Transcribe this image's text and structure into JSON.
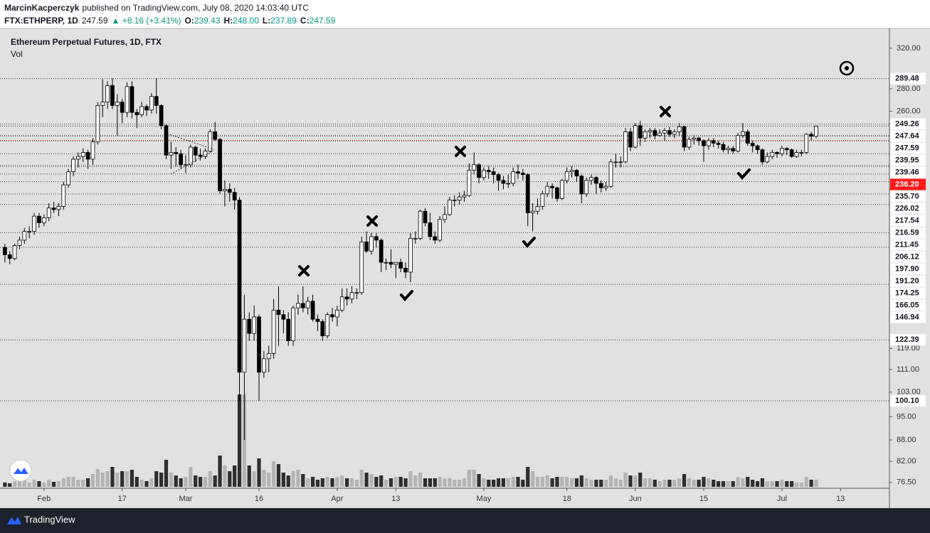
{
  "header": {
    "author": "MarcinKacperczyk",
    "published": "published on TradingView.com, July 08, 2020 14:03:40 UTC",
    "symbol": "FTX:ETHPERP, 1D",
    "last": "247.59",
    "change": "▲ +8.16 (+3.41%)",
    "o_label": "O:",
    "o": "239.43",
    "h_label": "H:",
    "h": "248.00",
    "l_label": "L:",
    "l": "237.89",
    "c_label": "C:",
    "c": "247.59"
  },
  "footer": {
    "brand": "TradingView"
  },
  "chart_data": {
    "type": "candlestick",
    "title": "Ethereum Perpetual Futures, 1D, FTX",
    "volume_label": "Vol",
    "log_scale": true,
    "grid": false,
    "colors": {
      "up": "#ffffff",
      "down": "#000000",
      "outline": "#000000",
      "volume_up": "#b4b4b4",
      "volume_down": "#2e2e2e",
      "level_line": "#444444"
    },
    "xlim": [
      "01-23",
      "07-23"
    ],
    "ylim": [
      75.4,
      341.6
    ],
    "vlim": [
      0,
      200
    ],
    "yticks": [
      {
        "value": 320,
        "label": "320.00"
      },
      {
        "value": 280,
        "label": "280.00"
      },
      {
        "value": 260,
        "label": "260.00"
      },
      {
        "value": 119,
        "label": "119.00"
      },
      {
        "value": 111,
        "label": "111.00"
      },
      {
        "value": 103,
        "label": "103.00"
      },
      {
        "value": 95,
        "label": "95.00"
      },
      {
        "value": 88,
        "label": "88.00"
      },
      {
        "value": 82,
        "label": "82.00"
      },
      {
        "value": 76.5,
        "label": "76.50"
      }
    ],
    "levels": [
      289.48,
      249.26,
      247.64,
      247.59,
      239.95,
      239.46,
      {
        "value": 236.2,
        "label": "236.20",
        "color": "#ff1a1a"
      },
      {
        "value": 235.7,
        "label": "235.70"
      },
      226.02,
      217.54,
      216.59,
      211.45,
      206.12,
      {
        "value": 197.9,
        "label": "197.90"
      },
      {
        "value": 191.2,
        "label": "191.20"
      },
      174.25,
      166.05,
      146.94,
      122.39,
      {
        "value": 100.1,
        "label": "100.10"
      }
    ],
    "xticks": [
      {
        "value": "02-01",
        "label": "Feb"
      },
      {
        "value": "02-17",
        "label": "17"
      },
      {
        "value": "03-01",
        "label": "Mar"
      },
      {
        "value": "03-16",
        "label": "16"
      },
      {
        "value": "04-01",
        "label": "Apr"
      },
      {
        "value": "04-13",
        "label": "13"
      },
      {
        "value": "05-01",
        "label": "May"
      },
      {
        "value": "05-18",
        "label": "18"
      },
      {
        "value": "06-01",
        "label": "Jun"
      },
      {
        "value": "06-15",
        "label": "15"
      },
      {
        "value": "07-01",
        "label": "Jul"
      },
      {
        "value": "07-13",
        "label": "13"
      }
    ],
    "x": [
      "01-24",
      "01-25",
      "01-26",
      "01-27",
      "01-28",
      "01-29",
      "01-30",
      "01-31",
      "02-01",
      "02-02",
      "02-03",
      "02-04",
      "02-05",
      "02-06",
      "02-07",
      "02-08",
      "02-09",
      "02-10",
      "02-11",
      "02-12",
      "02-13",
      "02-14",
      "02-15",
      "02-16",
      "02-17",
      "02-18",
      "02-19",
      "02-20",
      "02-21",
      "02-22",
      "02-23",
      "02-24",
      "02-25",
      "02-26",
      "02-27",
      "02-28",
      "02-29",
      "03-01",
      "03-02",
      "03-03",
      "03-04",
      "03-05",
      "03-06",
      "03-07",
      "03-08",
      "03-09",
      "03-10",
      "03-11",
      "03-12",
      "03-13",
      "03-14",
      "03-15",
      "03-16",
      "03-17",
      "03-18",
      "03-19",
      "03-20",
      "03-21",
      "03-22",
      "03-23",
      "03-24",
      "03-25",
      "03-26",
      "03-27",
      "03-28",
      "03-29",
      "03-30",
      "03-31",
      "04-01",
      "04-02",
      "04-03",
      "04-04",
      "04-05",
      "04-06",
      "04-07",
      "04-08",
      "04-09",
      "04-10",
      "04-11",
      "04-12",
      "04-13",
      "04-14",
      "04-15",
      "04-16",
      "04-17",
      "04-18",
      "04-19",
      "04-20",
      "04-21",
      "04-22",
      "04-23",
      "04-24",
      "04-25",
      "04-26",
      "04-27",
      "04-28",
      "04-29",
      "04-30",
      "05-01",
      "05-02",
      "05-03",
      "05-04",
      "05-05",
      "05-06",
      "05-07",
      "05-08",
      "05-09",
      "05-10",
      "05-11",
      "05-12",
      "05-13",
      "05-14",
      "05-15",
      "05-16",
      "05-17",
      "05-18",
      "05-19",
      "05-20",
      "05-21",
      "05-22",
      "05-23",
      "05-24",
      "05-25",
      "05-26",
      "05-27",
      "05-28",
      "05-29",
      "05-30",
      "05-31",
      "06-01",
      "06-02",
      "06-03",
      "06-04",
      "06-05",
      "06-06",
      "06-07",
      "06-08",
      "06-09",
      "06-10",
      "06-11",
      "06-12",
      "06-13",
      "06-14",
      "06-15",
      "06-16",
      "06-17",
      "06-18",
      "06-19",
      "06-20",
      "06-21",
      "06-22",
      "06-23",
      "06-24",
      "06-25",
      "06-26",
      "06-27",
      "06-28",
      "06-29",
      "06-30",
      "07-01",
      "07-02",
      "07-03",
      "07-04",
      "07-05",
      "07-06",
      "07-07",
      "07-08"
    ],
    "ohlc": [
      [
        166,
        168,
        158,
        162
      ],
      [
        162,
        164,
        157,
        160
      ],
      [
        160,
        168,
        159,
        167
      ],
      [
        167,
        172,
        165,
        170
      ],
      [
        170,
        177,
        168,
        175
      ],
      [
        175,
        178,
        171,
        175
      ],
      [
        175,
        186,
        173,
        184
      ],
      [
        184,
        186,
        177,
        180
      ],
      [
        180,
        185,
        178,
        183
      ],
      [
        183,
        192,
        181,
        189
      ],
      [
        189,
        193,
        186,
        188
      ],
      [
        188,
        192,
        184,
        190
      ],
      [
        190,
        206,
        188,
        204
      ],
      [
        204,
        215,
        202,
        213
      ],
      [
        213,
        224,
        210,
        222
      ],
      [
        222,
        227,
        216,
        224
      ],
      [
        224,
        230,
        220,
        227
      ],
      [
        227,
        229,
        215,
        222
      ],
      [
        222,
        238,
        218,
        235
      ],
      [
        235,
        268,
        233,
        265
      ],
      [
        265,
        289,
        255,
        268
      ],
      [
        268,
        287,
        262,
        283
      ],
      [
        283,
        290,
        262,
        265
      ],
      [
        265,
        275,
        240,
        268
      ],
      [
        268,
        271,
        250,
        259
      ],
      [
        259,
        286,
        255,
        282
      ],
      [
        282,
        287,
        254,
        259
      ],
      [
        259,
        262,
        246,
        257
      ],
      [
        257,
        268,
        255,
        264
      ],
      [
        264,
        266,
        256,
        261
      ],
      [
        261,
        276,
        258,
        273
      ],
      [
        273,
        290,
        258,
        265
      ],
      [
        265,
        266,
        245,
        248
      ],
      [
        248,
        249,
        222,
        225
      ],
      [
        225,
        235,
        215,
        227
      ],
      [
        227,
        231,
        217,
        226
      ],
      [
        226,
        229,
        215,
        218
      ],
      [
        218,
        225,
        212,
        218
      ],
      [
        218,
        233,
        216,
        231
      ],
      [
        231,
        232,
        220,
        225
      ],
      [
        225,
        230,
        221,
        224
      ],
      [
        224,
        230,
        222,
        228
      ],
      [
        228,
        245,
        227,
        243
      ],
      [
        243,
        251,
        236,
        237
      ],
      [
        237,
        238,
        198,
        200
      ],
      [
        200,
        207,
        190,
        201
      ],
      [
        201,
        205,
        193,
        199
      ],
      [
        199,
        202,
        188,
        194
      ],
      [
        194,
        196,
        100,
        110
      ],
      [
        110,
        142,
        88,
        131
      ],
      [
        131,
        134,
        122,
        125
      ],
      [
        125,
        137,
        122,
        132
      ],
      [
        132,
        133,
        100.1,
        110
      ],
      [
        110,
        118,
        108,
        115
      ],
      [
        115,
        120,
        110,
        117
      ],
      [
        117,
        140,
        115,
        135
      ],
      [
        135,
        146,
        120,
        133
      ],
      [
        133,
        135,
        125,
        131
      ],
      [
        131,
        134,
        120,
        122
      ],
      [
        122,
        137,
        120,
        136
      ],
      [
        136,
        142,
        133,
        138
      ],
      [
        138,
        146,
        134,
        136
      ],
      [
        136,
        141,
        133,
        139
      ],
      [
        139,
        142,
        130,
        131
      ],
      [
        131,
        133,
        126,
        130
      ],
      [
        130,
        131,
        122,
        124
      ],
      [
        124,
        134,
        123,
        133
      ],
      [
        133,
        136,
        130,
        132
      ],
      [
        132,
        137,
        128,
        135
      ],
      [
        135,
        145,
        134,
        141
      ],
      [
        141,
        145,
        137,
        140
      ],
      [
        140,
        146,
        138,
        143
      ],
      [
        143,
        145,
        140,
        143
      ],
      [
        143,
        172,
        142,
        169
      ],
      [
        169,
        175,
        163,
        164
      ],
      [
        164,
        174,
        162,
        172
      ],
      [
        172,
        174,
        166,
        170
      ],
      [
        170,
        171,
        153,
        158
      ],
      [
        158,
        160,
        154,
        158
      ],
      [
        158,
        165,
        155,
        157
      ],
      [
        157,
        158,
        150,
        158
      ],
      [
        158,
        160,
        153,
        155
      ],
      [
        155,
        158,
        150,
        153
      ],
      [
        153,
        174,
        148,
        171
      ],
      [
        171,
        175,
        168,
        171
      ],
      [
        171,
        188,
        170,
        187
      ],
      [
        187,
        189,
        178,
        180
      ],
      [
        180,
        186,
        170,
        172
      ],
      [
        172,
        175,
        168,
        170
      ],
      [
        170,
        184,
        169,
        182
      ],
      [
        182,
        190,
        180,
        185
      ],
      [
        185,
        196,
        184,
        194
      ],
      [
        194,
        197,
        190,
        194
      ],
      [
        194,
        199,
        191,
        196
      ],
      [
        196,
        200,
        193,
        197
      ],
      [
        197,
        219,
        196,
        214
      ],
      [
        214,
        227,
        211,
        218
      ],
      [
        218,
        219,
        205,
        209
      ],
      [
        209,
        216,
        207,
        214
      ],
      [
        214,
        217,
        208,
        213
      ],
      [
        213,
        216,
        205,
        211
      ],
      [
        211,
        212,
        200,
        207
      ],
      [
        207,
        210,
        201,
        205
      ],
      [
        205,
        211,
        202,
        205
      ],
      [
        205,
        216,
        203,
        213
      ],
      [
        213,
        218,
        208,
        212
      ],
      [
        212,
        215,
        207,
        211
      ],
      [
        211,
        212,
        178,
        186
      ],
      [
        186,
        192,
        175,
        187
      ],
      [
        187,
        195,
        185,
        190
      ],
      [
        190,
        200,
        188,
        198
      ],
      [
        198,
        206,
        196,
        203
      ],
      [
        203,
        205,
        195,
        202
      ],
      [
        202,
        203,
        193,
        195
      ],
      [
        195,
        208,
        194,
        207
      ],
      [
        207,
        216,
        205,
        213
      ],
      [
        213,
        217,
        209,
        214
      ],
      [
        214,
        215,
        206,
        210
      ],
      [
        210,
        211,
        192,
        198
      ],
      [
        198,
        209,
        196,
        207
      ],
      [
        207,
        211,
        204,
        209
      ],
      [
        209,
        210,
        198,
        205
      ],
      [
        205,
        207,
        199,
        202
      ],
      [
        202,
        206,
        200,
        203
      ],
      [
        203,
        222,
        202,
        220
      ],
      [
        220,
        226,
        216,
        220
      ],
      [
        220,
        224,
        216,
        220
      ],
      [
        220,
        246,
        219,
        243
      ],
      [
        243,
        246,
        228,
        231
      ],
      [
        231,
        250,
        230,
        248
      ],
      [
        248,
        252,
        232,
        238
      ],
      [
        238,
        245,
        235,
        243
      ],
      [
        243,
        246,
        238,
        244
      ],
      [
        244,
        246,
        237,
        240
      ],
      [
        240,
        245,
        239,
        242
      ],
      [
        242,
        246,
        236,
        244
      ],
      [
        244,
        247,
        239,
        241
      ],
      [
        241,
        245,
        238,
        243
      ],
      [
        243,
        250,
        240,
        247
      ],
      [
        247,
        248,
        228,
        231
      ],
      [
        231,
        239,
        229,
        237
      ],
      [
        237,
        240,
        233,
        238
      ],
      [
        238,
        239,
        232,
        236
      ],
      [
        236,
        237,
        220,
        232
      ],
      [
        232,
        238,
        229,
        236
      ],
      [
        236,
        238,
        231,
        234
      ],
      [
        234,
        236,
        230,
        233
      ],
      [
        233,
        235,
        227,
        229
      ],
      [
        229,
        232,
        226,
        230
      ],
      [
        230,
        232,
        226,
        228
      ],
      [
        228,
        242,
        227,
        240
      ],
      [
        240,
        250,
        238,
        243
      ],
      [
        243,
        245,
        232,
        234
      ],
      [
        234,
        236,
        227,
        232
      ],
      [
        232,
        233,
        226,
        229
      ],
      [
        229,
        230,
        218,
        220
      ],
      [
        220,
        227,
        219,
        224
      ],
      [
        224,
        229,
        222,
        227
      ],
      [
        227,
        228,
        223,
        226
      ],
      [
        226,
        232,
        224,
        230
      ],
      [
        230,
        231,
        225,
        229
      ],
      [
        229,
        230,
        223,
        224
      ],
      [
        224,
        229,
        223,
        227
      ],
      [
        227,
        229,
        224,
        227
      ],
      [
        227,
        242,
        226,
        241
      ],
      [
        241,
        243,
        236,
        239.43
      ],
      [
        239.43,
        248,
        237.89,
        247.59
      ]
    ],
    "volume": [
      6,
      5,
      8,
      10,
      12,
      6,
      10,
      8,
      6,
      10,
      7,
      8,
      12,
      14,
      14,
      10,
      10,
      12,
      18,
      25,
      20,
      22,
      28,
      20,
      22,
      22,
      24,
      14,
      10,
      8,
      12,
      22,
      20,
      38,
      20,
      16,
      12,
      14,
      28,
      16,
      14,
      14,
      22,
      16,
      44,
      30,
      22,
      30,
      130,
      130,
      30,
      22,
      40,
      24,
      20,
      36,
      32,
      20,
      16,
      22,
      24,
      18,
      12,
      14,
      10,
      12,
      14,
      12,
      14,
      16,
      12,
      12,
      10,
      24,
      20,
      18,
      14,
      16,
      10,
      12,
      14,
      14,
      12,
      22,
      16,
      20,
      12,
      12,
      12,
      14,
      12,
      12,
      10,
      10,
      12,
      24,
      24,
      18,
      12,
      10,
      10,
      12,
      12,
      12,
      14,
      14,
      10,
      28,
      22,
      14,
      14,
      16,
      12,
      14,
      14,
      14,
      12,
      12,
      16,
      12,
      10,
      10,
      10,
      10,
      16,
      12,
      10,
      20,
      16,
      16,
      20,
      12,
      12,
      10,
      8,
      10,
      10,
      10,
      12,
      18,
      12,
      10,
      10,
      14,
      12,
      10,
      8,
      8,
      8,
      8,
      14,
      12,
      14,
      10,
      8,
      12,
      8,
      8,
      8,
      10,
      8,
      8,
      6,
      6,
      14,
      10,
      10
    ]
  }
}
